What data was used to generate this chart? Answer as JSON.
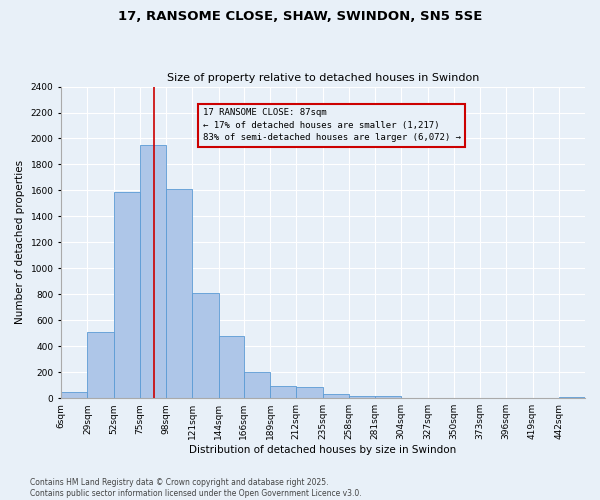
{
  "title": "17, RANSOME CLOSE, SHAW, SWINDON, SN5 5SE",
  "subtitle": "Size of property relative to detached houses in Swindon",
  "xlabel": "Distribution of detached houses by size in Swindon",
  "ylabel": "Number of detached properties",
  "footer": "Contains HM Land Registry data © Crown copyright and database right 2025.\nContains public sector information licensed under the Open Government Licence v3.0.",
  "annotation_title": "17 RANSOME CLOSE: 87sqm",
  "annotation_line1": "← 17% of detached houses are smaller (1,217)",
  "annotation_line2": "83% of semi-detached houses are larger (6,072) →",
  "property_size": 87,
  "bar_color": "#aec6e8",
  "bar_edge_color": "#5b9bd5",
  "vline_color": "#cc0000",
  "annotation_box_color": "#cc0000",
  "bins": [
    6,
    29,
    52,
    75,
    98,
    121,
    144,
    166,
    189,
    212,
    235,
    258,
    281,
    304,
    327,
    350,
    373,
    396,
    419,
    442,
    465
  ],
  "values": [
    50,
    510,
    1590,
    1950,
    1610,
    810,
    480,
    200,
    95,
    90,
    35,
    20,
    20,
    5,
    0,
    0,
    0,
    0,
    0,
    10
  ],
  "ylim": [
    0,
    2400
  ],
  "yticks": [
    0,
    200,
    400,
    600,
    800,
    1000,
    1200,
    1400,
    1600,
    1800,
    2000,
    2200,
    2400
  ],
  "bg_color": "#e8f0f8",
  "grid_color": "#ffffff",
  "title_fontsize": 9.5,
  "subtitle_fontsize": 8.0,
  "label_fontsize": 7.5,
  "tick_fontsize": 6.5,
  "footer_fontsize": 5.5,
  "annot_fontsize": 6.5
}
